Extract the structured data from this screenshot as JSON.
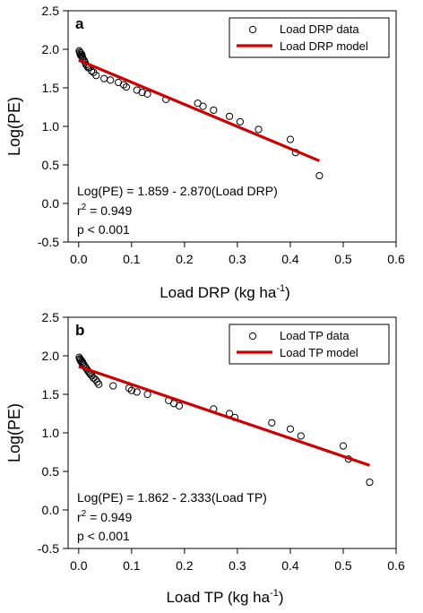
{
  "chart_data": [
    {
      "type": "scatter",
      "panel_label": "a",
      "xlabel": "Load DRP (kg ha",
      "xlabel_sup": "-1",
      "xlabel_close": ")",
      "ylabel": "Log(PE)",
      "xlim": [
        -0.02,
        0.6
      ],
      "ylim": [
        -0.5,
        2.5
      ],
      "xticks": [
        0.0,
        0.1,
        0.2,
        0.3,
        0.4,
        0.5,
        0.6
      ],
      "xtick_labels": [
        "0.0",
        "0.1",
        "0.2",
        "0.3",
        "0.4",
        "0.5",
        "0.6"
      ],
      "yticks": [
        -0.5,
        0.0,
        0.5,
        1.0,
        1.5,
        2.0,
        2.5
      ],
      "ytick_labels": [
        "-0.5",
        "0.0",
        "0.5",
        "1.0",
        "1.5",
        "2.0",
        "2.5"
      ],
      "grid": false,
      "legend_position": "top-right",
      "series": [
        {
          "name": "Load DRP data",
          "kind": "scatter",
          "color": "#000000",
          "x": [
            0.001,
            0.002,
            0.003,
            0.004,
            0.005,
            0.006,
            0.007,
            0.008,
            0.01,
            0.012,
            0.014,
            0.016,
            0.018,
            0.02,
            0.024,
            0.028,
            0.033,
            0.048,
            0.06,
            0.075,
            0.085,
            0.09,
            0.11,
            0.12,
            0.13,
            0.165,
            0.225,
            0.235,
            0.255,
            0.285,
            0.305,
            0.34,
            0.4,
            0.41,
            0.455
          ],
          "y": [
            1.98,
            1.96,
            1.93,
            1.95,
            1.91,
            1.93,
            1.9,
            1.88,
            1.86,
            1.83,
            1.8,
            1.78,
            1.76,
            1.77,
            1.72,
            1.7,
            1.66,
            1.62,
            1.6,
            1.57,
            1.54,
            1.51,
            1.47,
            1.44,
            1.42,
            1.35,
            1.3,
            1.26,
            1.21,
            1.13,
            1.06,
            0.96,
            0.83,
            0.66,
            0.36
          ]
        },
        {
          "name": "Load DRP model",
          "kind": "line",
          "color": "#cc0000",
          "x": [
            0.0,
            0.455
          ],
          "y": [
            1.859,
            0.553
          ]
        }
      ],
      "annotations": {
        "equation": "Log(PE) = 1.859 - 2.870(Load DRP)",
        "r2_prefix": "r",
        "r2_sup": "2",
        "r2_rest": " = 0.949",
        "p_value": "p < 0.001"
      }
    },
    {
      "type": "scatter",
      "panel_label": "b",
      "xlabel": "Load TP (kg ha",
      "xlabel_sup": "-1",
      "xlabel_close": ")",
      "ylabel": "Log(PE)",
      "xlim": [
        -0.02,
        0.6
      ],
      "ylim": [
        -0.5,
        2.5
      ],
      "xticks": [
        0.0,
        0.1,
        0.2,
        0.3,
        0.4,
        0.5,
        0.6
      ],
      "xtick_labels": [
        "0.0",
        "0.1",
        "0.2",
        "0.3",
        "0.4",
        "0.5",
        "0.6"
      ],
      "yticks": [
        -0.5,
        0.0,
        0.5,
        1.0,
        1.5,
        2.0,
        2.5
      ],
      "ytick_labels": [
        "-0.5",
        "0.0",
        "0.5",
        "1.0",
        "1.5",
        "2.0",
        "2.5"
      ],
      "grid": false,
      "legend_position": "top-right",
      "series": [
        {
          "name": "Load TP data",
          "kind": "scatter",
          "color": "#000000",
          "x": [
            0.001,
            0.002,
            0.003,
            0.004,
            0.005,
            0.006,
            0.007,
            0.008,
            0.01,
            0.012,
            0.014,
            0.016,
            0.018,
            0.02,
            0.022,
            0.025,
            0.028,
            0.032,
            0.035,
            0.038,
            0.065,
            0.095,
            0.1,
            0.11,
            0.13,
            0.17,
            0.18,
            0.19,
            0.255,
            0.285,
            0.295,
            0.365,
            0.4,
            0.42,
            0.5,
            0.51,
            0.55
          ],
          "y": [
            1.98,
            1.96,
            1.94,
            1.95,
            1.92,
            1.93,
            1.9,
            1.91,
            1.88,
            1.86,
            1.84,
            1.82,
            1.8,
            1.78,
            1.76,
            1.74,
            1.71,
            1.69,
            1.66,
            1.63,
            1.61,
            1.58,
            1.55,
            1.53,
            1.5,
            1.42,
            1.38,
            1.35,
            1.31,
            1.25,
            1.2,
            1.13,
            1.05,
            0.96,
            0.83,
            0.66,
            0.36
          ]
        },
        {
          "name": "Load TP model",
          "kind": "line",
          "color": "#cc0000",
          "x": [
            0.0,
            0.55
          ],
          "y": [
            1.862,
            0.579
          ]
        }
      ],
      "annotations": {
        "equation": "Log(PE) = 1.862 - 2.333(Load TP)",
        "r2_prefix": "r",
        "r2_sup": "2",
        "r2_rest": " = 0.949",
        "p_value": "p < 0.001"
      }
    }
  ]
}
